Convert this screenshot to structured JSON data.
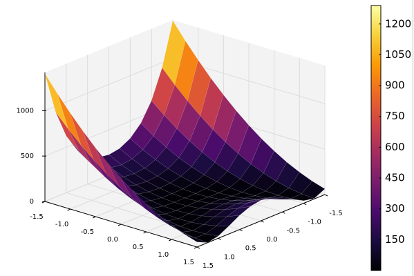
{
  "chart_data": {
    "type": "surface",
    "x": [
      -1.5,
      -1.25,
      -1,
      -0.75,
      -0.5,
      -0.25,
      0,
      0.25,
      0.5,
      0.75,
      1,
      1.25,
      1.5
    ],
    "y": [
      -1.5,
      -1.25,
      -1,
      -0.75,
      -0.5,
      -0.25,
      0,
      0.25,
      0.5,
      0.75,
      1,
      1.25,
      1.5
    ],
    "z": [
      [
        1413,
        943,
        629,
        428,
        309,
        246,
        226,
        245,
        307,
        425,
        625,
        938,
        1406
      ],
      [
        1231,
        796,
        510,
        332,
        227,
        174,
        157,
        173,
        225,
        329,
        506,
        791,
        1225
      ],
      [
        1063,
        662,
        404,
        247,
        159,
        114,
        101,
        113,
        157,
        244,
        400,
        657,
        1056
      ],
      [
        906,
        540,
        310,
        175,
        102,
        68,
        57,
        67,
        100,
        172,
        306,
        535,
        900
      ],
      [
        763,
        430,
        229,
        116,
        59,
        33,
        26,
        32,
        57,
        113,
        225,
        425,
        756
      ],
      [
        631,
        334,
        160,
        69,
        27,
        11,
        7,
        10,
        25,
        66,
        156,
        329,
        625
      ],
      [
        513,
        249,
        104,
        35,
        9,
        2,
        1,
        1,
        7,
        32,
        100,
        244,
        506
      ],
      [
        406,
        177,
        60,
        13,
        2,
        5,
        7,
        4,
        0,
        10,
        56,
        172,
        400
      ],
      [
        313,
        118,
        29,
        3,
        9,
        21,
        26,
        20,
        7,
        0,
        25,
        113,
        306
      ],
      [
        231,
        71,
        10,
        7,
        27,
        49,
        57,
        48,
        25,
        4,
        6,
        66,
        225
      ],
      [
        163,
        37,
        4,
        22,
        59,
        89,
        101,
        88,
        57,
        19,
        0,
        32,
        156
      ],
      [
        106,
        15,
        10,
        50,
        102,
        143,
        157,
        142,
        100,
        47,
        6,
        10,
        100
      ],
      [
        63,
        5,
        29,
        91,
        159,
        208,
        226,
        207,
        157,
        88,
        25,
        0,
        56
      ]
    ],
    "xlim": [
      -1.5,
      1.5
    ],
    "ylim": [
      -1.5,
      1.5
    ],
    "zlim": [
      0,
      1420
    ],
    "xticks": [
      -1.5,
      {
        "value": -1,
        "label": "-1.0"
      },
      -0.5,
      {
        "value": 0,
        "label": "0.0"
      },
      0.5,
      {
        "value": 1,
        "label": "1.0"
      },
      1.5
    ],
    "yticks": [
      -1.5,
      {
        "value": -1,
        "label": "-1.0"
      },
      -0.5,
      {
        "value": 0,
        "label": "0.0"
      },
      0.5,
      {
        "value": 1,
        "label": "1.0"
      },
      1.5
    ],
    "zticks": [
      0,
      500,
      1000
    ],
    "clim": [
      0,
      1290
    ],
    "cticks": [
      150,
      300,
      450,
      600,
      750,
      900,
      1050,
      1200
    ],
    "colormap": [
      "#000004",
      "#1b0c41",
      "#4a0c6b",
      "#781c6d",
      "#a52c60",
      "#cf4446",
      "#ed6925",
      "#fb9b06",
      "#f7d13d",
      "#fcffa4"
    ],
    "grid": true
  }
}
